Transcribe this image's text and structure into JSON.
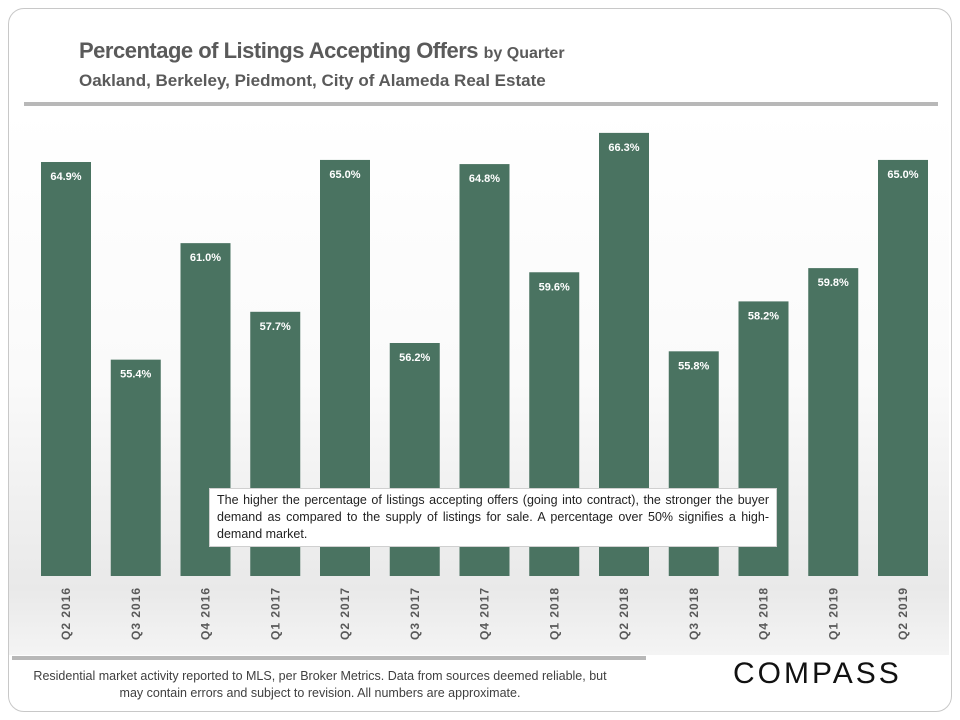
{
  "header": {
    "title": "Percentage of Listings Accepting Offers",
    "title_suffix": "by Quarter",
    "subtitle": "Oakland, Berkeley, Piedmont, City of Alameda Real Estate"
  },
  "chart_data": {
    "type": "bar",
    "title": "Percentage of Listings Accepting Offers by Quarter",
    "categories": [
      "Q2 2016",
      "Q3 2016",
      "Q4 2016",
      "Q1 2017",
      "Q2 2017",
      "Q3 2017",
      "Q4 2017",
      "Q1 2018",
      "Q2 2018",
      "Q3 2018",
      "Q4 2018",
      "Q1 2019",
      "Q2 2019"
    ],
    "values": [
      64.9,
      55.4,
      61.0,
      57.7,
      65.0,
      56.2,
      64.8,
      59.6,
      66.3,
      55.8,
      58.2,
      59.8,
      65.0
    ],
    "labels": [
      "64.9%",
      "55.4%",
      "61.0%",
      "57.7%",
      "65.0%",
      "56.2%",
      "64.8%",
      "59.6%",
      "66.3%",
      "55.8%",
      "58.2%",
      "59.8%",
      "65.0%"
    ],
    "xlabel": "",
    "ylabel": "",
    "ylim": [
      45,
      67.4
    ],
    "grid": false,
    "bar_color": "#4a7361"
  },
  "annotation": "The higher the percentage of listings accepting offers (going into contract), the stronger the buyer demand as compared to the supply of listings for sale. A percentage over 50% signifies a high-demand market.",
  "footer": {
    "text": "Residential market activity reported to MLS, per Broker Metrics. Data from sources deemed reliable, but may contain errors and subject to revision. All numbers are approximate.",
    "logo": "COMPASS"
  }
}
